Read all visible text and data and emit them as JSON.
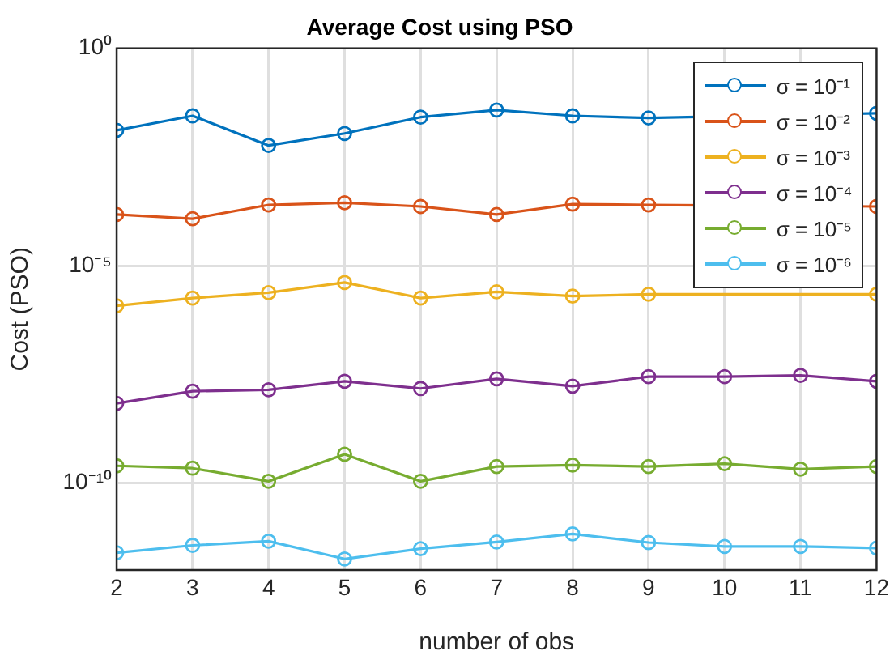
{
  "chart_data": {
    "type": "line",
    "title": "Average Cost using PSO",
    "xlabel": "number of obs",
    "ylabel": "Cost (PSO)",
    "x": [
      2,
      3,
      4,
      5,
      6,
      7,
      8,
      9,
      10,
      11,
      12
    ],
    "xlim": [
      2,
      12
    ],
    "xticks": [
      2,
      3,
      4,
      5,
      6,
      7,
      8,
      9,
      10,
      11,
      12
    ],
    "ylim": [
      1e-12,
      1
    ],
    "yticks": [
      {
        "value": 1,
        "label": "10⁰"
      },
      {
        "value": 1e-05,
        "label": "10⁻⁵"
      },
      {
        "value": 1e-10,
        "label": "10⁻¹⁰"
      }
    ],
    "log": "y",
    "grid": true,
    "legend": "top right",
    "marker": "circle",
    "line_style": "solid",
    "series": [
      {
        "name": "σ = 10⁻¹",
        "color": "#0072bd",
        "values": [
          0.013,
          0.028,
          0.0058,
          0.011,
          0.026,
          0.038,
          0.028,
          0.025,
          null,
          null,
          0.032
        ]
      },
      {
        "name": "σ = 10⁻²",
        "color": "#d95319",
        "values": [
          0.00015,
          0.00012,
          0.00025,
          0.00028,
          0.00023,
          0.00015,
          0.00026,
          0.00025,
          null,
          null,
          0.00023
        ]
      },
      {
        "name": "σ = 10⁻³",
        "color": "#edb120",
        "values": [
          1.2e-06,
          1.8e-06,
          2.4e-06,
          4.1e-06,
          1.8e-06,
          2.5e-06,
          2e-06,
          2.2e-06,
          null,
          null,
          2.2e-06
        ]
      },
      {
        "name": "σ = 10⁻⁴",
        "color": "#7e2f8e",
        "values": [
          6.8e-09,
          1.3e-08,
          1.4e-08,
          2.2e-08,
          1.5e-08,
          2.5e-08,
          1.7e-08,
          2.8e-08,
          2.8e-08,
          3e-08,
          2.2e-08
        ]
      },
      {
        "name": "σ = 10⁻⁵",
        "color": "#77ac30",
        "values": [
          2.5e-10,
          2.2e-10,
          1.1e-10,
          4.6e-10,
          1.1e-10,
          2.4e-10,
          2.6e-10,
          2.4e-10,
          2.8e-10,
          2.1e-10,
          2.4e-10
        ]
      },
      {
        "name": "σ = 10⁻⁶",
        "color": "#4dbeee",
        "values": [
          2.5e-12,
          3.7e-12,
          4.6e-12,
          1.8e-12,
          3.1e-12,
          4.4e-12,
          6.8e-12,
          4.3e-12,
          3.5e-12,
          3.5e-12,
          3.2e-12
        ]
      }
    ]
  }
}
